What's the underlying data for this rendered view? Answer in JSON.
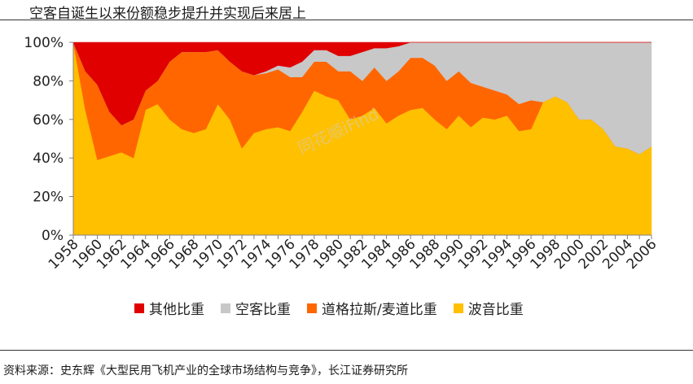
{
  "header": {
    "title": "空客自诞生以来份额稳步提升并实现后来居上"
  },
  "footer": {
    "source": "资料来源：史东辉《大型民用飞机产业的全球市场结构与竞争》，长江证券研究所"
  },
  "watermark": "同花顺iFind",
  "chart_data": {
    "type": "area",
    "stacked": true,
    "x": [
      1958,
      1959,
      1960,
      1961,
      1962,
      1963,
      1964,
      1965,
      1966,
      1967,
      1968,
      1969,
      1970,
      1971,
      1972,
      1973,
      1974,
      1975,
      1976,
      1977,
      1978,
      1979,
      1980,
      1981,
      1982,
      1983,
      1984,
      1985,
      1986,
      1987,
      1988,
      1989,
      1990,
      1991,
      1992,
      1993,
      1994,
      1995,
      1996,
      1997,
      1998,
      1999,
      2000,
      2001,
      2002,
      2003,
      2004,
      2005,
      2006
    ],
    "x_tick_labels": [
      "1958",
      "1960",
      "1962",
      "1964",
      "1966",
      "1968",
      "1970",
      "1972",
      "1974",
      "1976",
      "1978",
      "1980",
      "1982",
      "1984",
      "1986",
      "1988",
      "1990",
      "1992",
      "1994",
      "1996",
      "1998",
      "2000",
      "2002",
      "2004",
      "2006"
    ],
    "y_tick_labels": [
      "0%",
      "20%",
      "40%",
      "60%",
      "80%",
      "100%"
    ],
    "ylim": [
      0,
      100
    ],
    "grid": false,
    "legend_position": "bottom",
    "series": [
      {
        "name": "波音比重",
        "color": "#FFC000",
        "values": [
          100,
          65,
          39,
          41,
          43,
          40,
          65,
          68,
          60,
          55,
          53,
          55,
          68,
          60,
          45,
          53,
          55,
          56,
          54,
          64,
          75,
          72,
          70,
          60,
          62,
          66,
          58,
          62,
          65,
          66,
          60,
          55,
          62,
          56,
          61,
          60,
          62,
          54,
          55,
          69,
          72,
          69,
          60,
          60,
          55,
          46,
          45,
          42,
          46
        ]
      },
      {
        "name": "道格拉斯/麦道比重",
        "color": "#FF6600",
        "values": [
          0,
          20,
          39,
          23,
          14,
          20,
          10,
          12,
          30,
          40,
          42,
          40,
          28,
          30,
          40,
          30,
          29,
          30,
          28,
          18,
          15,
          18,
          15,
          25,
          18,
          21,
          22,
          23,
          27,
          26,
          28,
          25,
          23,
          23,
          16,
          15,
          11,
          14,
          15,
          0,
          0,
          0,
          0,
          0,
          0,
          0,
          0,
          0,
          0
        ]
      },
      {
        "name": "空客比重",
        "color": "#C8C8C8",
        "values": [
          0,
          0,
          0,
          0,
          0,
          0,
          0,
          0,
          0,
          0,
          0,
          0,
          0,
          0,
          0,
          0,
          1,
          2,
          5,
          8,
          6,
          6,
          8,
          8,
          15,
          10,
          17,
          13,
          8,
          8,
          12,
          20,
          15,
          21,
          23,
          25,
          27,
          32,
          30,
          31,
          28,
          31,
          40,
          40,
          45,
          54,
          55,
          58,
          54
        ]
      },
      {
        "name": "其他比重",
        "color": "#E00000",
        "values": [
          0,
          15,
          22,
          36,
          43,
          40,
          25,
          20,
          10,
          5,
          5,
          5,
          4,
          10,
          15,
          17,
          15,
          12,
          13,
          10,
          4,
          4,
          7,
          7,
          5,
          3,
          3,
          2,
          0,
          0,
          0,
          0,
          0,
          0,
          0,
          0,
          0,
          0,
          0,
          0,
          0,
          0,
          0,
          0,
          0,
          0,
          0,
          0,
          0
        ]
      }
    ],
    "legend_order": [
      "其他比重",
      "空客比重",
      "道格拉斯/麦道比重",
      "波音比重"
    ]
  }
}
